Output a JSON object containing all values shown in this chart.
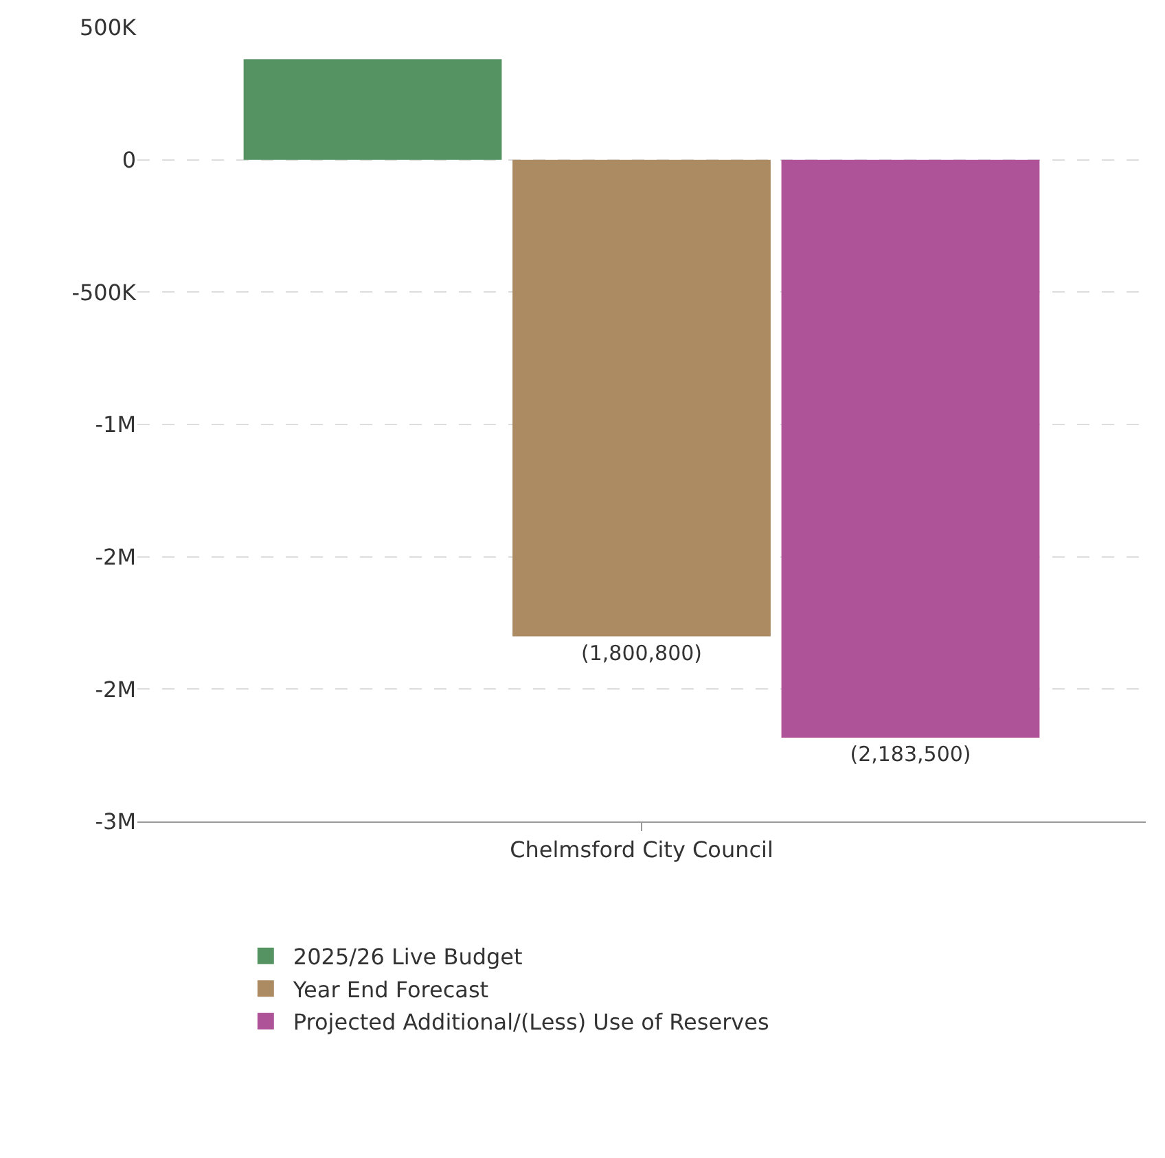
{
  "chart_data": {
    "type": "bar",
    "categories": [
      "Chelmsford City Council"
    ],
    "series": [
      {
        "name": "2025/26 Live Budget",
        "color": "#559462",
        "values": [
          380000
        ],
        "value_labels": [
          null
        ]
      },
      {
        "name": "Year End Forecast",
        "color": "#ac8a62",
        "values": [
          -1800800
        ],
        "value_labels": [
          "(1,800,800)"
        ]
      },
      {
        "name": "Projected Additional/(Less) Use of Reserves",
        "color": "#ae5398",
        "values": [
          -2183500
        ],
        "value_labels": [
          "(2,183,500)"
        ]
      }
    ],
    "ylim": [
      -2500000,
      500000
    ],
    "yticks": [
      {
        "value": 500000,
        "label": "500K"
      },
      0,
      {
        "value": -500000,
        "label": "-500K"
      },
      {
        "value": -1000000,
        "label": "-1M"
      },
      {
        "value": -1500000,
        "label": "-2M"
      },
      {
        "value": -2000000,
        "label": "-2M"
      },
      {
        "value": -2500000,
        "label": "-3M"
      }
    ],
    "grid": "y",
    "legend": "bottom"
  }
}
